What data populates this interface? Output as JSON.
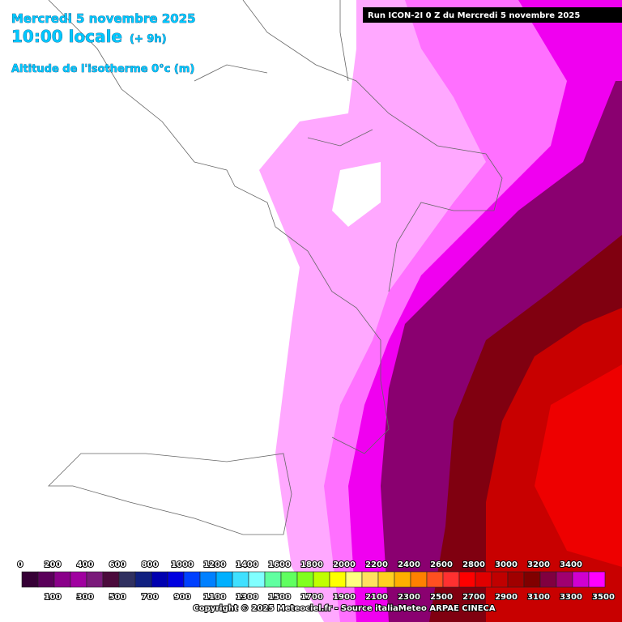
{
  "header": {
    "date": "Mercredi 5 novembre 2025",
    "time": "10:00 locale",
    "offset": "(+ 9h)",
    "field": "Altitude de l'isotherme 0°c (m)"
  },
  "run_label": "Run ICON-2I 0 Z du Mercredi 5 novembre 2025",
  "legend": {
    "labels": [
      0,
      100,
      200,
      300,
      400,
      500,
      600,
      700,
      800,
      900,
      1000,
      1100,
      1200,
      1300,
      1400,
      1500,
      1600,
      1700,
      1800,
      1900,
      2000,
      2100,
      2200,
      2300,
      2400,
      2500,
      2600,
      2700,
      2800,
      2900,
      3000,
      3100,
      3200,
      3300,
      3400,
      3500
    ],
    "colors": [
      "#360036",
      "#5a005a",
      "#8a008a",
      "#a000a0",
      "#7a1a7a",
      "#4b0a3c",
      "#303060",
      "#102080",
      "#0000b0",
      "#0000e0",
      "#0040ff",
      "#0080ff",
      "#00b0ff",
      "#40e0ff",
      "#80ffff",
      "#60ffa0",
      "#60ff60",
      "#80ff20",
      "#c0ff00",
      "#ffff00",
      "#ffff80",
      "#ffe060",
      "#ffd020",
      "#ffb000",
      "#ff8000",
      "#ff5020",
      "#ff3030",
      "#ff0000",
      "#e00000",
      "#c00000",
      "#a00000",
      "#800000",
      "#800040",
      "#a00070",
      "#d000d0",
      "#ff00ff"
    ]
  },
  "copyright": "Copyright © 2025 Meteociel.fr - Source italiaMeteo ARPAE CINECA"
}
